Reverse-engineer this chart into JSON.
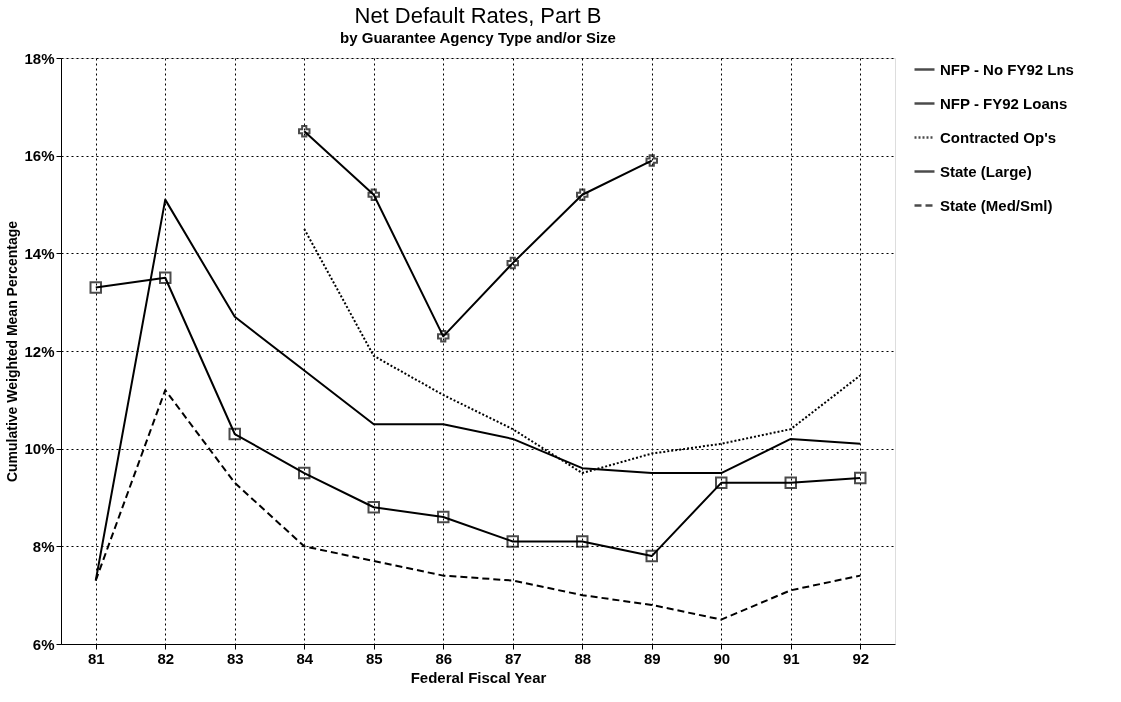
{
  "chart_data": {
    "type": "line",
    "title": "Net Default Rates, Part B",
    "subtitle": "by Guarantee Agency Type and/or Size",
    "xlabel": "Federal Fiscal Year",
    "ylabel": "Cumulative Weighted Mean Percentage",
    "categories": [
      "81",
      "82",
      "83",
      "84",
      "85",
      "86",
      "87",
      "88",
      "89",
      "90",
      "91",
      "92"
    ],
    "ylim": [
      6,
      18
    ],
    "yticks": [
      {
        "value": 6,
        "label": "6%"
      },
      {
        "value": 8,
        "label": "8%"
      },
      {
        "value": 10,
        "label": "10%"
      },
      {
        "value": 12,
        "label": "12%"
      },
      {
        "value": 14,
        "label": "14%"
      },
      {
        "value": 16,
        "label": "16%"
      },
      {
        "value": 18,
        "label": "18%"
      }
    ],
    "grid": true,
    "legend": "right",
    "series": [
      {
        "name": "NFP - No FY92 Lns",
        "color": "#000000",
        "marker": "cross",
        "line_style": "solid",
        "values": [
          null,
          null,
          null,
          16.5,
          15.2,
          12.3,
          13.8,
          15.2,
          15.9,
          null,
          null,
          null
        ]
      },
      {
        "name": "NFP - FY92 Loans",
        "color": "#000000",
        "marker": "square",
        "line_style": "solid",
        "values": [
          13.3,
          13.5,
          10.3,
          9.5,
          8.8,
          8.6,
          8.1,
          8.1,
          7.8,
          9.3,
          9.3,
          9.4
        ]
      },
      {
        "name": "Contracted Op's",
        "color": "#000000",
        "marker": "none",
        "line_style": "dotted",
        "values": [
          null,
          null,
          null,
          14.5,
          11.9,
          11.1,
          10.4,
          9.5,
          9.9,
          10.1,
          10.4,
          11.5
        ]
      },
      {
        "name": "State (Large)",
        "color": "#000000",
        "marker": "none",
        "line_style": "solid",
        "values": [
          7.3,
          15.1,
          12.7,
          11.6,
          10.5,
          10.5,
          10.2,
          9.6,
          9.5,
          9.5,
          10.2,
          10.1
        ]
      },
      {
        "name": "State (Med/Sml)",
        "color": "#000000",
        "marker": "none",
        "line_style": "dashed",
        "values": [
          7.3,
          11.2,
          9.3,
          8.0,
          7.7,
          7.4,
          7.3,
          7.0,
          6.8,
          6.5,
          7.1,
          7.4
        ]
      }
    ]
  }
}
